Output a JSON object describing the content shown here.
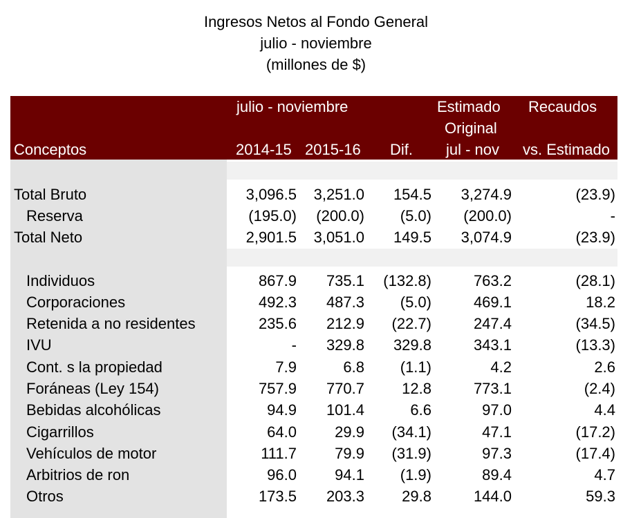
{
  "title": {
    "line1": "Ingresos Netos al Fondo General",
    "line2": "julio - noviembre",
    "line3": "(millones de $)"
  },
  "header": {
    "period": "julio - noviembre",
    "estimado": "Estimado",
    "original": "Original",
    "recaudos": "Recaudos",
    "conceptos": "Conceptos",
    "year1": "2014-15",
    "year2": "2015-16",
    "dif": "Dif.",
    "julnov": "jul - nov",
    "vs_estimado": "vs. Estimado"
  },
  "rows": [
    {
      "label": "Total Bruto",
      "indent": false,
      "v1": "3,096.5",
      "v2": "3,251.0",
      "v3": "154.5",
      "v4": "3,274.9",
      "v5": "(23.9)"
    },
    {
      "label": "Reserva",
      "indent": true,
      "v1": "(195.0)",
      "v2": "(200.0)",
      "v3": "(5.0)",
      "v4": "(200.0)",
      "v5": "-"
    },
    {
      "label": "Total Neto",
      "indent": false,
      "v1": "2,901.5",
      "v2": "3,051.0",
      "v3": "149.5",
      "v4": "3,074.9",
      "v5": "(23.9)"
    },
    {
      "label": "Individuos",
      "indent": true,
      "v1": "867.9",
      "v2": "735.1",
      "v3": "(132.8)",
      "v4": "763.2",
      "v5": "(28.1)"
    },
    {
      "label": "Corporaciones",
      "indent": true,
      "v1": "492.3",
      "v2": "487.3",
      "v3": "(5.0)",
      "v4": "469.1",
      "v5": "18.2"
    },
    {
      "label": "Retenida a no residentes",
      "indent": true,
      "v1": "235.6",
      "v2": "212.9",
      "v3": "(22.7)",
      "v4": "247.4",
      "v5": "(34.5)"
    },
    {
      "label": "IVU",
      "indent": true,
      "v1": "-",
      "v2": "329.8",
      "v3": "329.8",
      "v4": "343.1",
      "v5": "(13.3)"
    },
    {
      "label": "Cont. s la propiedad",
      "indent": true,
      "v1": "7.9",
      "v2": "6.8",
      "v3": "(1.1)",
      "v4": "4.2",
      "v5": "2.6"
    },
    {
      "label": "Foráneas (Ley 154)",
      "indent": true,
      "v1": "757.9",
      "v2": "770.7",
      "v3": "12.8",
      "v4": "773.1",
      "v5": "(2.4)"
    },
    {
      "label": "Bebidas alcohólicas",
      "indent": true,
      "v1": "94.9",
      "v2": "101.4",
      "v3": "6.6",
      "v4": "97.0",
      "v5": "4.4"
    },
    {
      "label": "Cigarrillos",
      "indent": true,
      "v1": "64.0",
      "v2": "29.9",
      "v3": "(34.1)",
      "v4": "47.1",
      "v5": "(17.2)"
    },
    {
      "label": "Vehículos de motor",
      "indent": true,
      "v1": "111.7",
      "v2": "79.9",
      "v3": "(31.9)",
      "v4": "97.3",
      "v5": "(17.4)"
    },
    {
      "label": "Arbitrios de ron",
      "indent": true,
      "v1": "96.0",
      "v2": "94.1",
      "v3": "(1.9)",
      "v4": "89.4",
      "v5": "4.7"
    },
    {
      "label": "Otros",
      "indent": true,
      "v1": "173.5",
      "v2": "203.3",
      "v3": "29.8",
      "v4": "144.0",
      "v5": "59.3"
    }
  ]
}
